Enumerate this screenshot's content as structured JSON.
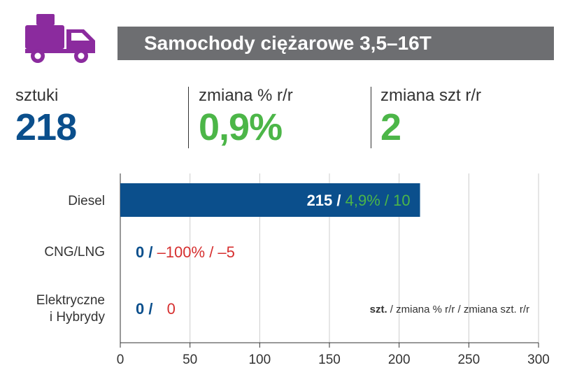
{
  "header": {
    "title": "Samochody ciężarowe 3,5–16T",
    "icon": "truck-icon",
    "icon_color": "#8b2b9e",
    "bar_color": "#6d6e71"
  },
  "kpis": [
    {
      "label": "sztuki",
      "value": "218",
      "color": "#0b4f8c"
    },
    {
      "label": "zmiana % r/r",
      "value": "0,9%",
      "color": "#4cb648"
    },
    {
      "label": "zmiana szt r/r",
      "value": "2",
      "color": "#4cb648"
    }
  ],
  "chart_data": {
    "type": "bar",
    "orientation": "horizontal",
    "categories": [
      "Diesel",
      "CNG/LNG",
      "Elektryczne i Hybrydy"
    ],
    "category_lines": [
      [
        "Diesel"
      ],
      [
        "CNG/LNG"
      ],
      [
        "Elektryczne",
        "i Hybrydy"
      ]
    ],
    "values": [
      215,
      0,
      0
    ],
    "xlim": [
      0,
      300
    ],
    "xticks": [
      0,
      50,
      100,
      150,
      200,
      250,
      300
    ],
    "grid": true,
    "bar_color": "#0b4f8c",
    "data_labels": [
      {
        "count": "215",
        "pct": "4,9%",
        "change": "10",
        "pct_color": "#4cb648"
      },
      {
        "count": "0",
        "pct": "–100%",
        "change": "–5",
        "pct_color": "#d62f2f"
      },
      {
        "count": "0",
        "pct": "",
        "change": "0",
        "pct_color": "#d62f2f"
      }
    ],
    "legend": {
      "bold": "szt.",
      "rest": " / zmiana % r/r / zmiana szt. r/r"
    }
  }
}
